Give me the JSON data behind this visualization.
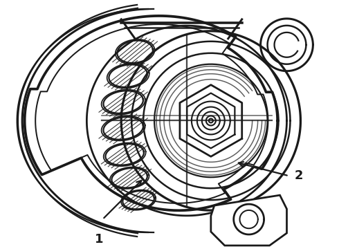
{
  "background_color": "#ffffff",
  "line_color": "#1a1a1a",
  "label1": "1",
  "label2": "2",
  "figsize": [
    4.9,
    3.6
  ],
  "dpi": 100
}
